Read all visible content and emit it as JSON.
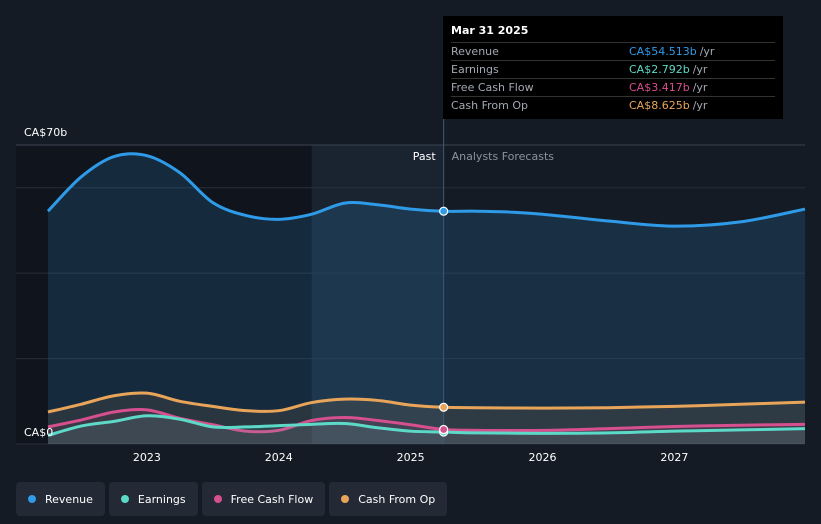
{
  "chart_data": {
    "type": "area",
    "y_axis": {
      "top_label": "CA$70b",
      "bottom_label": "CA$0",
      "ylim": [
        0,
        70
      ]
    },
    "x_axis": {
      "tick_labels": [
        "2023",
        "2024",
        "2025",
        "2026",
        "2027"
      ],
      "ticks": [
        2023,
        2024,
        2025,
        2026,
        2027
      ],
      "xlim": [
        2022.25,
        2027.99
      ]
    },
    "gridlines": [
      0,
      20,
      40,
      60,
      70
    ],
    "past_label": "Past",
    "forecast_label": "Analysts Forecasts",
    "divider_x": 2025.25,
    "shade_start_x": 2024.25,
    "series": [
      {
        "name": "Revenue",
        "color": "#2f9be8",
        "x": [
          2022.25,
          2022.5,
          2022.75,
          2023.0,
          2023.25,
          2023.5,
          2023.75,
          2024.0,
          2024.25,
          2024.5,
          2024.75,
          2025.0,
          2025.25,
          2025.5,
          2025.75,
          2026.0,
          2026.5,
          2027.0,
          2027.5,
          2027.99
        ],
        "y": [
          54.5,
          62.5,
          67.3,
          67.5,
          63.5,
          56.5,
          53.5,
          52.6,
          53.8,
          56.4,
          56.0,
          55.0,
          54.5,
          54.5,
          54.3,
          53.8,
          52.2,
          51.0,
          52.0,
          55.0
        ]
      },
      {
        "name": "Earnings",
        "color": "#5dd9c8",
        "x": [
          2022.25,
          2022.5,
          2022.75,
          2023.0,
          2023.25,
          2023.5,
          2023.75,
          2024.0,
          2024.25,
          2024.5,
          2024.75,
          2025.0,
          2025.25,
          2025.5,
          2026.0,
          2026.5,
          2027.0,
          2027.5,
          2027.99
        ],
        "y": [
          2.0,
          4.2,
          5.3,
          6.6,
          5.8,
          4.0,
          4.0,
          4.3,
          4.6,
          4.8,
          3.8,
          3.0,
          2.8,
          2.6,
          2.5,
          2.6,
          3.0,
          3.3,
          3.6
        ]
      },
      {
        "name": "Free Cash Flow",
        "color": "#d64f8e",
        "x": [
          2022.25,
          2022.5,
          2022.75,
          2023.0,
          2023.25,
          2023.5,
          2023.75,
          2024.0,
          2024.25,
          2024.5,
          2024.75,
          2025.0,
          2025.25,
          2025.5,
          2026.0,
          2026.5,
          2027.0,
          2027.5,
          2027.99
        ],
        "y": [
          4.0,
          5.6,
          7.5,
          8.0,
          6.0,
          4.5,
          3.0,
          3.2,
          5.5,
          6.2,
          5.5,
          4.5,
          3.4,
          3.2,
          3.2,
          3.6,
          4.1,
          4.4,
          4.6
        ]
      },
      {
        "name": "Cash From Op",
        "color": "#e8a55a",
        "x": [
          2022.25,
          2022.5,
          2022.75,
          2023.0,
          2023.25,
          2023.5,
          2023.75,
          2024.0,
          2024.25,
          2024.5,
          2024.75,
          2025.0,
          2025.25,
          2025.5,
          2026.0,
          2026.5,
          2027.0,
          2027.5,
          2027.99
        ],
        "y": [
          7.5,
          9.3,
          11.3,
          11.9,
          10.0,
          8.8,
          7.8,
          7.8,
          9.7,
          10.5,
          10.2,
          9.1,
          8.6,
          8.5,
          8.4,
          8.5,
          8.8,
          9.3,
          9.8
        ]
      }
    ]
  },
  "tooltip": {
    "date": "Mar 31 2025",
    "unit": "/yr",
    "rows": [
      {
        "label": "Revenue",
        "value": "CA$54.513b",
        "color": "#2f9be8"
      },
      {
        "label": "Earnings",
        "value": "CA$2.792b",
        "color": "#5dd9c8"
      },
      {
        "label": "Free Cash Flow",
        "value": "CA$3.417b",
        "color": "#d64f8e"
      },
      {
        "label": "Cash From Op",
        "value": "CA$8.625b",
        "color": "#e8a55a"
      }
    ]
  },
  "legend": [
    {
      "label": "Revenue",
      "color": "#2f9be8"
    },
    {
      "label": "Earnings",
      "color": "#5dd9c8"
    },
    {
      "label": "Free Cash Flow",
      "color": "#d64f8e"
    },
    {
      "label": "Cash From Op",
      "color": "#e8a55a"
    }
  ]
}
